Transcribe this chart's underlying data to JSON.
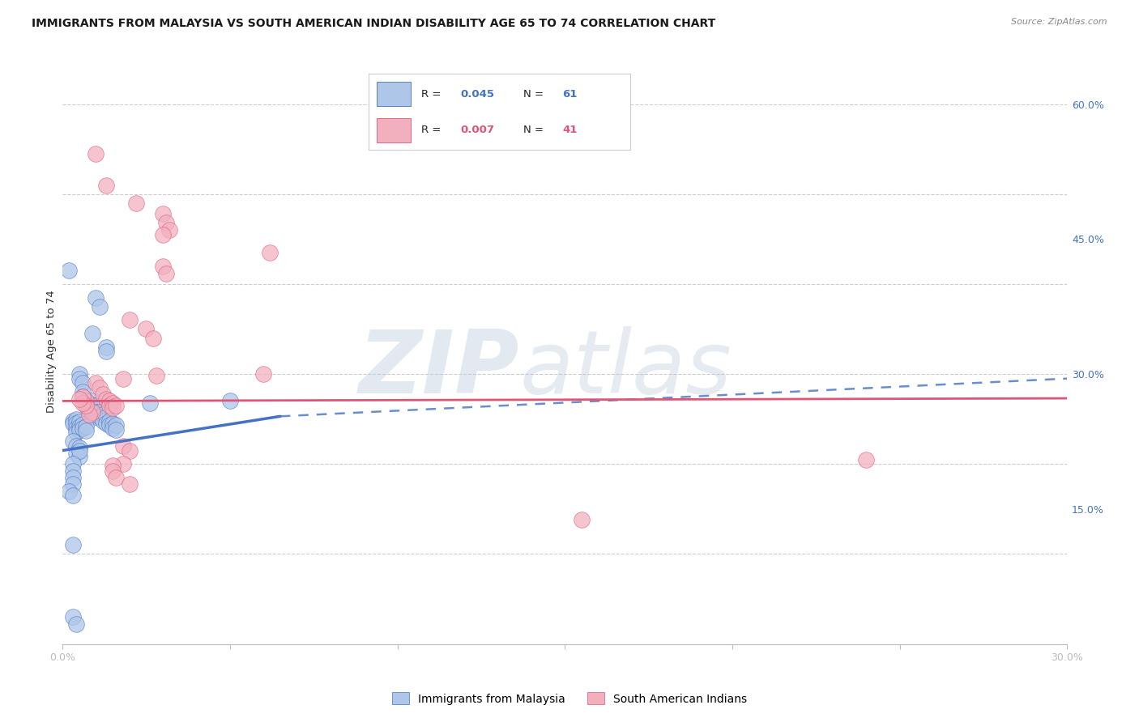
{
  "title": "IMMIGRANTS FROM MALAYSIA VS SOUTH AMERICAN INDIAN DISABILITY AGE 65 TO 74 CORRELATION CHART",
  "source": "Source: ZipAtlas.com",
  "ylabel": "Disability Age 65 to 74",
  "xlim": [
    0.0,
    0.3
  ],
  "ylim": [
    0.0,
    0.65
  ],
  "xticks": [
    0.0,
    0.05,
    0.1,
    0.15,
    0.2,
    0.25,
    0.3
  ],
  "xticklabels": [
    "0.0%",
    "",
    "",
    "",
    "",
    "",
    "30.0%"
  ],
  "yticks": [
    0.0,
    0.15,
    0.3,
    0.45,
    0.6
  ],
  "yticklabels": [
    "",
    "15.0%",
    "30.0%",
    "45.0%",
    "60.0%"
  ],
  "watermark_zip": "ZIP",
  "watermark_atlas": "atlas",
  "blue_color": "#aec6e8",
  "pink_color": "#f2b0bf",
  "blue_edge_color": "#4472c4",
  "pink_edge_color": "#e05575",
  "blue_trendline_solid": [
    [
      0.0,
      0.215
    ],
    [
      0.065,
      0.253
    ]
  ],
  "blue_trendline_dashed": [
    [
      0.065,
      0.253
    ],
    [
      0.3,
      0.295
    ]
  ],
  "pink_trendline": [
    [
      0.0,
      0.27
    ],
    [
      0.3,
      0.273
    ]
  ],
  "blue_scatter": [
    [
      0.002,
      0.415
    ],
    [
      0.01,
      0.385
    ],
    [
      0.011,
      0.375
    ],
    [
      0.009,
      0.345
    ],
    [
      0.013,
      0.33
    ],
    [
      0.013,
      0.325
    ],
    [
      0.005,
      0.3
    ],
    [
      0.005,
      0.295
    ],
    [
      0.006,
      0.29
    ],
    [
      0.006,
      0.28
    ],
    [
      0.006,
      0.275
    ],
    [
      0.007,
      0.27
    ],
    [
      0.007,
      0.265
    ],
    [
      0.008,
      0.268
    ],
    [
      0.008,
      0.26
    ],
    [
      0.009,
      0.27
    ],
    [
      0.009,
      0.265
    ],
    [
      0.009,
      0.255
    ],
    [
      0.01,
      0.265
    ],
    [
      0.01,
      0.258
    ],
    [
      0.01,
      0.252
    ],
    [
      0.011,
      0.258
    ],
    [
      0.011,
      0.252
    ],
    [
      0.012,
      0.255
    ],
    [
      0.012,
      0.248
    ],
    [
      0.013,
      0.252
    ],
    [
      0.013,
      0.245
    ],
    [
      0.014,
      0.248
    ],
    [
      0.014,
      0.243
    ],
    [
      0.015,
      0.245
    ],
    [
      0.015,
      0.24
    ],
    [
      0.016,
      0.243
    ],
    [
      0.016,
      0.238
    ],
    [
      0.003,
      0.248
    ],
    [
      0.003,
      0.245
    ],
    [
      0.004,
      0.25
    ],
    [
      0.004,
      0.245
    ],
    [
      0.004,
      0.24
    ],
    [
      0.004,
      0.235
    ],
    [
      0.005,
      0.247
    ],
    [
      0.005,
      0.242
    ],
    [
      0.005,
      0.238
    ],
    [
      0.006,
      0.244
    ],
    [
      0.006,
      0.24
    ],
    [
      0.007,
      0.242
    ],
    [
      0.007,
      0.237
    ],
    [
      0.026,
      0.268
    ],
    [
      0.05,
      0.27
    ],
    [
      0.003,
      0.225
    ],
    [
      0.004,
      0.22
    ],
    [
      0.005,
      0.218
    ],
    [
      0.004,
      0.212
    ],
    [
      0.005,
      0.208
    ],
    [
      0.005,
      0.215
    ],
    [
      0.003,
      0.2
    ],
    [
      0.003,
      0.192
    ],
    [
      0.003,
      0.185
    ],
    [
      0.003,
      0.178
    ],
    [
      0.002,
      0.17
    ],
    [
      0.003,
      0.165
    ],
    [
      0.003,
      0.11
    ],
    [
      0.003,
      0.03
    ],
    [
      0.004,
      0.022
    ]
  ],
  "pink_scatter": [
    [
      0.01,
      0.545
    ],
    [
      0.013,
      0.51
    ],
    [
      0.022,
      0.49
    ],
    [
      0.03,
      0.478
    ],
    [
      0.031,
      0.468
    ],
    [
      0.032,
      0.46
    ],
    [
      0.03,
      0.455
    ],
    [
      0.062,
      0.435
    ],
    [
      0.03,
      0.42
    ],
    [
      0.031,
      0.412
    ],
    [
      0.02,
      0.36
    ],
    [
      0.025,
      0.35
    ],
    [
      0.027,
      0.34
    ],
    [
      0.06,
      0.3
    ],
    [
      0.028,
      0.298
    ],
    [
      0.018,
      0.295
    ],
    [
      0.01,
      0.29
    ],
    [
      0.011,
      0.285
    ],
    [
      0.012,
      0.278
    ],
    [
      0.013,
      0.272
    ],
    [
      0.014,
      0.27
    ],
    [
      0.014,
      0.265
    ],
    [
      0.015,
      0.268
    ],
    [
      0.015,
      0.262
    ],
    [
      0.016,
      0.265
    ],
    [
      0.009,
      0.258
    ],
    [
      0.008,
      0.255
    ],
    [
      0.007,
      0.27
    ],
    [
      0.007,
      0.265
    ],
    [
      0.006,
      0.275
    ],
    [
      0.006,
      0.268
    ],
    [
      0.005,
      0.272
    ],
    [
      0.018,
      0.22
    ],
    [
      0.02,
      0.215
    ],
    [
      0.018,
      0.2
    ],
    [
      0.015,
      0.198
    ],
    [
      0.015,
      0.192
    ],
    [
      0.016,
      0.185
    ],
    [
      0.02,
      0.178
    ],
    [
      0.24,
      0.205
    ],
    [
      0.155,
      0.138
    ]
  ]
}
